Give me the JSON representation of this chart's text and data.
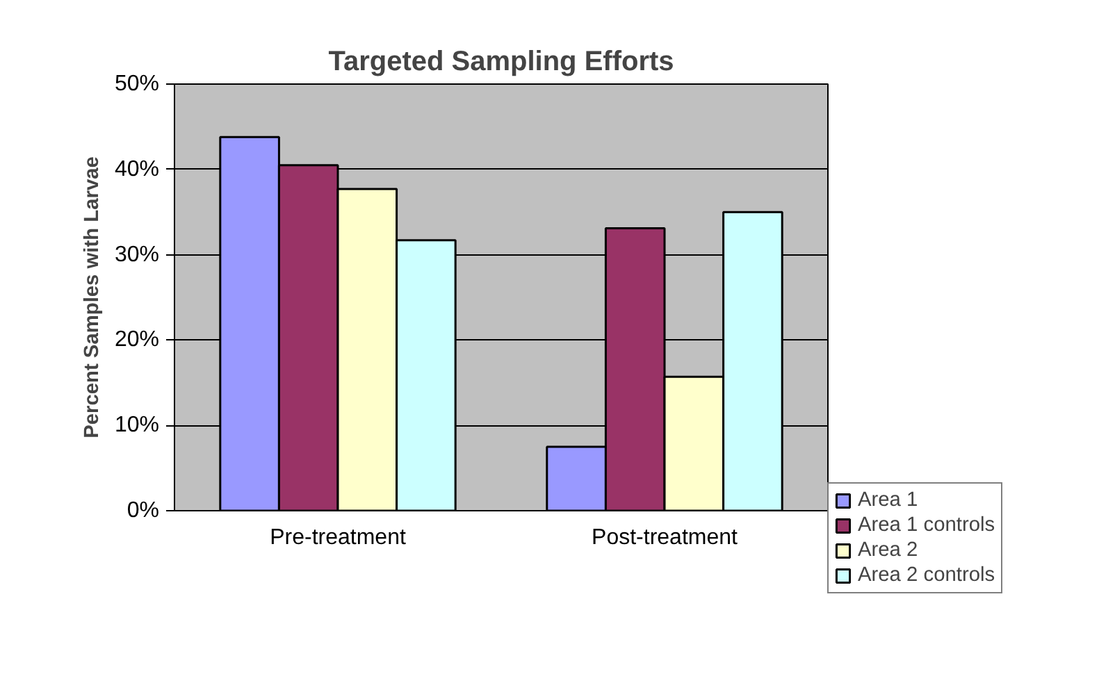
{
  "chart_data": {
    "type": "bar",
    "title": "Targeted Sampling Efforts",
    "ylabel": "Percent Samples with Larvae",
    "categories": [
      "Pre-treatment",
      "Post-treatment"
    ],
    "series": [
      {
        "name": "Area 1",
        "color": "#9999ff",
        "values": [
          43.8,
          7.5
        ]
      },
      {
        "name": "Area 1 controls",
        "color": "#993366",
        "values": [
          40.5,
          33.1
        ]
      },
      {
        "name": "Area 2",
        "color": "#ffffcc",
        "values": [
          37.7,
          15.7
        ]
      },
      {
        "name": "Area 2 controls",
        "color": "#ccffff",
        "values": [
          31.7,
          35.0
        ]
      }
    ],
    "ylim": [
      0,
      50
    ],
    "yticks": [
      {
        "value": 0,
        "label": "0%"
      },
      {
        "value": 10,
        "label": "10%"
      },
      {
        "value": 20,
        "label": "20%"
      },
      {
        "value": 30,
        "label": "30%"
      },
      {
        "value": 40,
        "label": "40%"
      },
      {
        "value": 50,
        "label": "50%"
      }
    ],
    "grid": "y",
    "legend": "right"
  }
}
